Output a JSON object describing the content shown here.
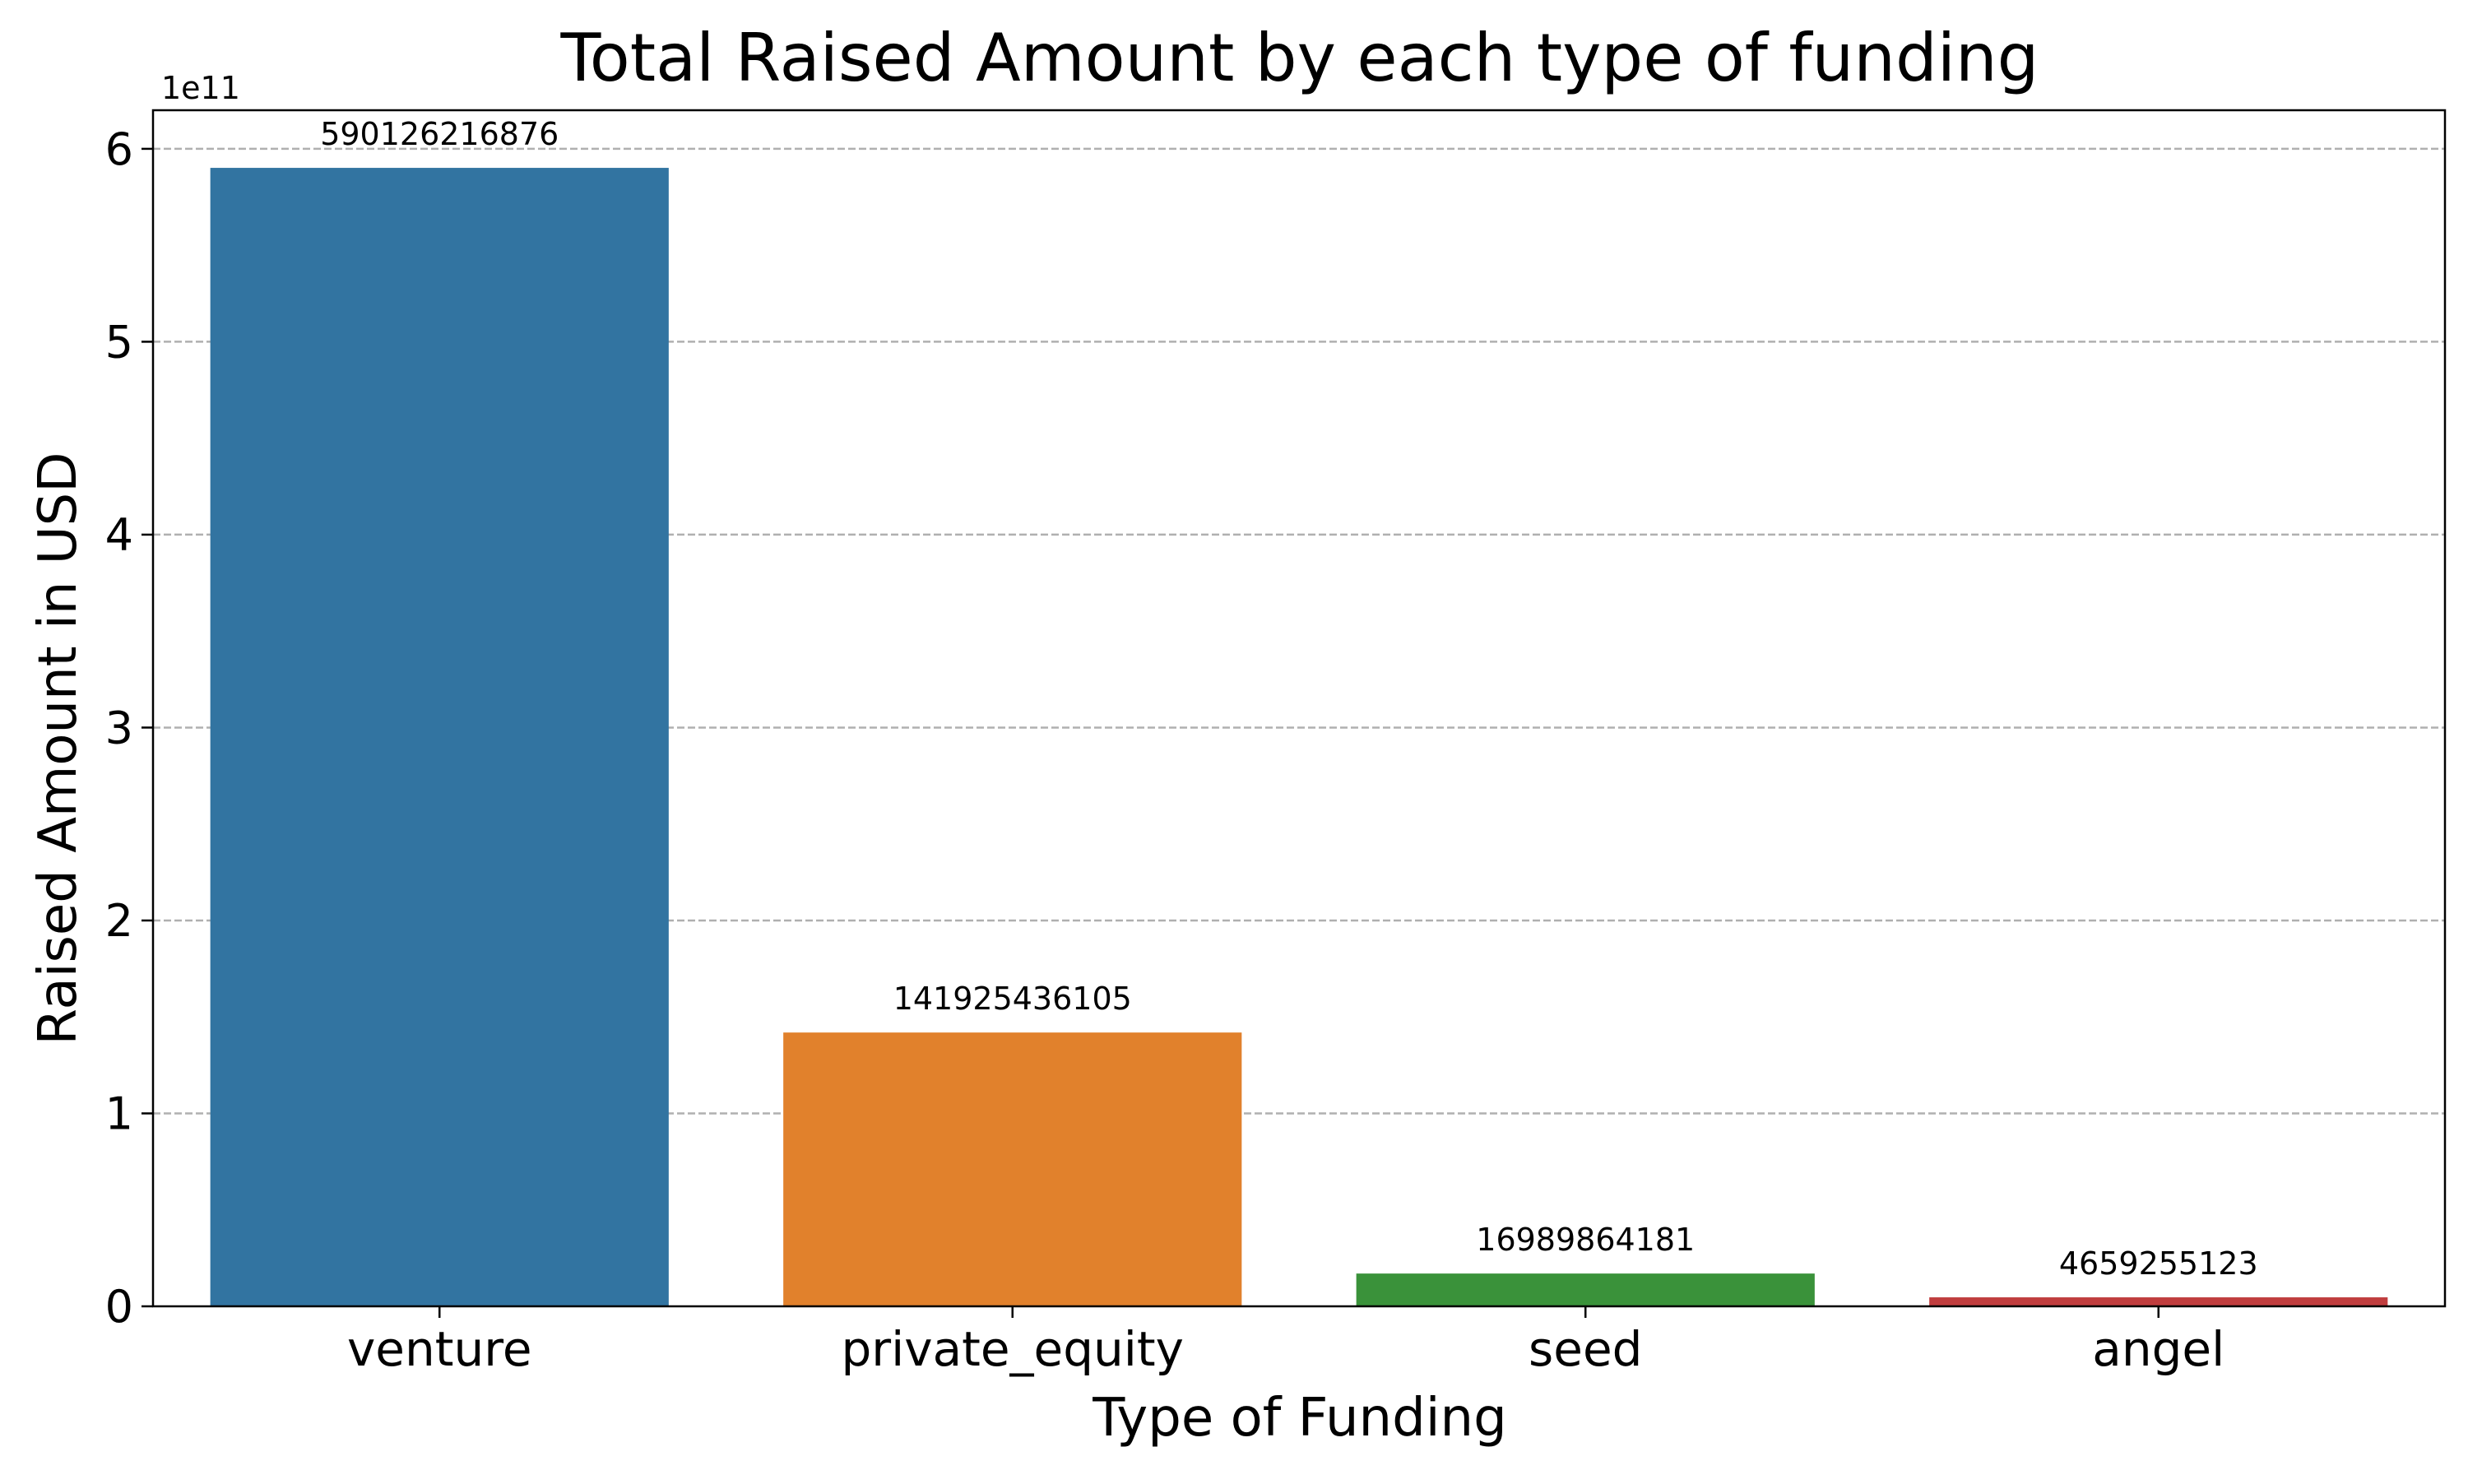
{
  "chart_data": {
    "type": "bar",
    "title": "Total Raised Amount by each type of funding",
    "xlabel": "Type of Funding",
    "ylabel": "Raised Amount in USD",
    "y_offset_label": "1e11",
    "categories": [
      "venture",
      "private_equity",
      "seed",
      "angel"
    ],
    "values": [
      590126216876,
      141925436105,
      16989864181,
      4659255123
    ],
    "value_labels": [
      "590126216876",
      "141925436105",
      "16989864181",
      "4659255123"
    ],
    "colors": [
      "#3274a1",
      "#e1812c",
      "#3a923a",
      "#c03d3e"
    ],
    "ylim": [
      0,
      620000000000
    ],
    "y_ticks": [
      0,
      100000000000,
      200000000000,
      300000000000,
      400000000000,
      500000000000,
      600000000000
    ],
    "y_tick_labels": [
      "0",
      "1",
      "2",
      "3",
      "4",
      "5",
      "6"
    ],
    "grid": "y-dashed",
    "legend": "none"
  }
}
